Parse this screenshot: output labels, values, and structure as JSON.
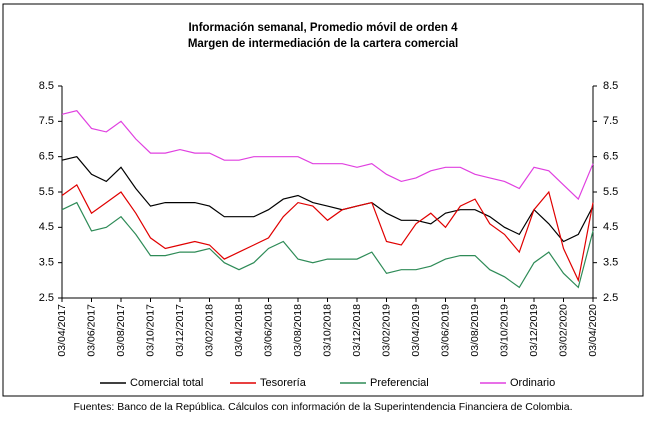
{
  "chart_data": {
    "type": "line",
    "title": "Información semanal, Promedio móvil de orden 4",
    "subtitle": "Margen de intermediación de la cartera comercial",
    "source": "Fuentes: Banco de la República. Cálculos con información de la Superintendencia Financiera de Colombia.",
    "categories": [
      "03/04/2017",
      null,
      "03/06/2017",
      null,
      "03/08/2017",
      null,
      "03/10/2017",
      null,
      "03/12/2017",
      null,
      "03/02/2018",
      null,
      "03/04/2018",
      null,
      "03/06/2018",
      null,
      "03/08/2018",
      null,
      "03/10/2018",
      null,
      "03/12/2018",
      null,
      "03/02/2019",
      null,
      "03/04/2019",
      null,
      "03/06/2019",
      null,
      "03/08/2019",
      null,
      "03/10/2019",
      null,
      "03/12/2019",
      null,
      "03/02/2020",
      null,
      "03/04/2020"
    ],
    "series": [
      {
        "name": "Comercial total",
        "color": "#000000",
        "values": [
          6.4,
          6.5,
          6.0,
          5.8,
          6.2,
          5.6,
          5.1,
          5.2,
          5.2,
          5.2,
          5.1,
          4.8,
          4.8,
          4.8,
          5.0,
          5.3,
          5.4,
          5.2,
          5.1,
          5.0,
          5.1,
          5.2,
          4.9,
          4.7,
          4.7,
          4.6,
          4.9,
          5.0,
          5.0,
          4.8,
          4.5,
          4.3,
          5.0,
          4.6,
          4.1,
          4.3,
          5.1
        ]
      },
      {
        "name": "Tesorería",
        "color": "#e00000",
        "values": [
          5.4,
          5.7,
          4.9,
          5.2,
          5.5,
          4.9,
          4.2,
          3.9,
          4.0,
          4.1,
          4.0,
          3.6,
          3.8,
          4.0,
          4.2,
          4.8,
          5.2,
          5.1,
          4.7,
          5.0,
          5.1,
          5.2,
          4.1,
          4.0,
          4.6,
          4.9,
          4.5,
          5.1,
          5.3,
          4.6,
          4.3,
          3.8,
          5.0,
          5.5,
          3.9,
          3.0,
          5.2
        ]
      },
      {
        "name": "Preferencial",
        "color": "#2e8b57",
        "values": [
          5.0,
          5.2,
          4.4,
          4.5,
          4.8,
          4.3,
          3.7,
          3.7,
          3.8,
          3.8,
          3.9,
          3.5,
          3.3,
          3.5,
          3.9,
          4.1,
          3.6,
          3.5,
          3.6,
          3.6,
          3.6,
          3.8,
          3.2,
          3.3,
          3.3,
          3.4,
          3.6,
          3.7,
          3.7,
          3.3,
          3.1,
          2.8,
          3.5,
          3.8,
          3.2,
          2.8,
          4.4
        ]
      },
      {
        "name": "Ordinario",
        "color": "#e040e0",
        "values": [
          7.7,
          7.8,
          7.3,
          7.2,
          7.5,
          7.0,
          6.6,
          6.6,
          6.7,
          6.6,
          6.6,
          6.4,
          6.4,
          6.5,
          6.5,
          6.5,
          6.5,
          6.3,
          6.3,
          6.3,
          6.2,
          6.3,
          6.0,
          5.8,
          5.9,
          6.1,
          6.2,
          6.2,
          6.0,
          5.9,
          5.8,
          5.6,
          6.2,
          6.1,
          5.7,
          5.3,
          6.3
        ]
      }
    ],
    "ylim": [
      2.5,
      8.5
    ],
    "yticks": [
      2.5,
      3.5,
      4.5,
      5.5,
      6.5,
      7.5,
      8.5
    ],
    "y2lim": [
      2.5,
      8.5
    ],
    "y2ticks": [
      2.5,
      3.5,
      4.5,
      5.5,
      6.5,
      7.5,
      8.5
    ],
    "legend": "bottom"
  }
}
